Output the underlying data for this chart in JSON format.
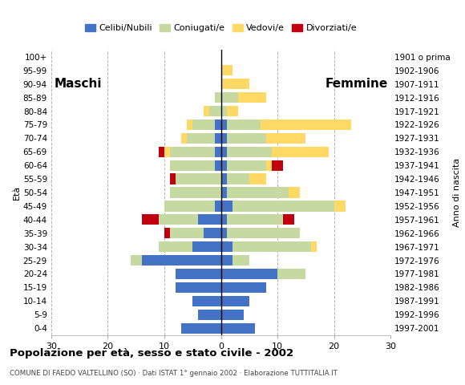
{
  "age_groups": [
    "0-4",
    "5-9",
    "10-14",
    "15-19",
    "20-24",
    "25-29",
    "30-34",
    "35-39",
    "40-44",
    "45-49",
    "50-54",
    "55-59",
    "60-64",
    "65-69",
    "70-74",
    "75-79",
    "80-84",
    "85-89",
    "90-94",
    "95-99",
    "100+"
  ],
  "birth_years": [
    "1997-2001",
    "1992-1996",
    "1987-1991",
    "1982-1986",
    "1977-1981",
    "1972-1976",
    "1967-1971",
    "1962-1966",
    "1957-1961",
    "1952-1956",
    "1947-1951",
    "1942-1946",
    "1937-1941",
    "1932-1936",
    "1927-1931",
    "1922-1926",
    "1917-1921",
    "1912-1916",
    "1907-1911",
    "1902-1906",
    "1901 o prima"
  ],
  "males": {
    "celibe": [
      7,
      4,
      5,
      8,
      8,
      14,
      5,
      3,
      4,
      1,
      0,
      0,
      1,
      1,
      1,
      1,
      0,
      0,
      0,
      0,
      0
    ],
    "coniugato": [
      0,
      0,
      0,
      0,
      0,
      2,
      6,
      6,
      7,
      9,
      9,
      8,
      8,
      8,
      5,
      4,
      2,
      1,
      0,
      0,
      0
    ],
    "vedovo": [
      0,
      0,
      0,
      0,
      0,
      0,
      0,
      0,
      0,
      0,
      0,
      0,
      0,
      1,
      1,
      1,
      1,
      0,
      0,
      0,
      0
    ],
    "divorziato": [
      0,
      0,
      0,
      0,
      0,
      0,
      0,
      1,
      3,
      0,
      0,
      1,
      0,
      1,
      0,
      0,
      0,
      0,
      0,
      0,
      0
    ]
  },
  "females": {
    "nubile": [
      6,
      4,
      5,
      8,
      10,
      2,
      2,
      1,
      1,
      2,
      1,
      1,
      1,
      1,
      1,
      1,
      0,
      0,
      0,
      0,
      0
    ],
    "coniugata": [
      0,
      0,
      0,
      0,
      5,
      3,
      14,
      13,
      10,
      18,
      11,
      4,
      7,
      8,
      7,
      6,
      1,
      3,
      0,
      0,
      0
    ],
    "vedova": [
      0,
      0,
      0,
      0,
      0,
      0,
      1,
      0,
      0,
      2,
      2,
      3,
      1,
      10,
      7,
      16,
      2,
      5,
      5,
      2,
      0
    ],
    "divorziata": [
      0,
      0,
      0,
      0,
      0,
      0,
      0,
      0,
      2,
      0,
      0,
      0,
      2,
      0,
      0,
      0,
      0,
      0,
      0,
      0,
      0
    ]
  },
  "colors": {
    "celibe_nubile": "#4472c4",
    "coniugato_coniugata": "#c5d9a0",
    "vedovo_vedova": "#ffd966",
    "divorziato_divorziata": "#c0000f"
  },
  "xlim": 30,
  "title": "Popolazione per età, sesso e stato civile - 2002",
  "subtitle": "COMUNE DI FAEDO VALTELLINO (SO) · Dati ISTAT 1° gennaio 2002 · Elaborazione TUTTITALIA.IT",
  "xlabel_left": "Maschi",
  "xlabel_right": "Femmine",
  "ylabel_left": "Età",
  "ylabel_right": "Anno di nascita",
  "legend_labels": [
    "Celibi/Nubili",
    "Coniugati/e",
    "Vedovi/e",
    "Divorziati/e"
  ],
  "background_color": "#ffffff"
}
